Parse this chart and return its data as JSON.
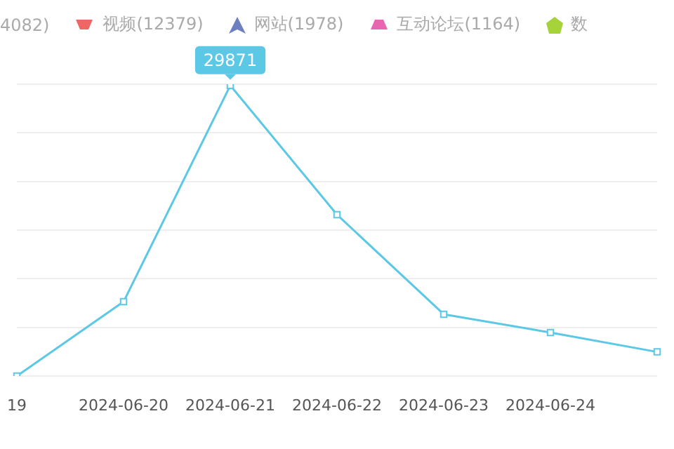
{
  "chart_data": {
    "type": "line",
    "categories": [
      "19",
      "2024-06-20",
      "2024-06-21",
      "2024-06-22",
      "2024-06-23",
      "2024-06-24",
      null
    ],
    "series": [
      {
        "color": "#5bc8e6",
        "values": [
          0,
          7640,
          29871,
          16590,
          6350,
          4470,
          2480
        ],
        "value_labels": [
          null,
          null,
          "29871",
          null,
          null,
          null,
          null
        ]
      }
    ],
    "ylim": [
      0,
      30000
    ],
    "yticks": [
      {
        "value": 0,
        "label": null
      },
      {
        "value": 5000,
        "label": null
      },
      {
        "value": 10000,
        "label": null
      },
      {
        "value": 15000,
        "label": null
      },
      {
        "value": 20000,
        "label": null
      },
      {
        "value": 25000,
        "label": null
      },
      {
        "value": 30000,
        "label": null
      }
    ],
    "tick_labels": "x",
    "grid": "y",
    "marker": "square",
    "line_style": "solid",
    "legend": false,
    "annotations": [
      "4082)",
      "视频(12379)",
      "网站(1978)",
      "互动论坛(1164)",
      "数"
    ]
  }
}
